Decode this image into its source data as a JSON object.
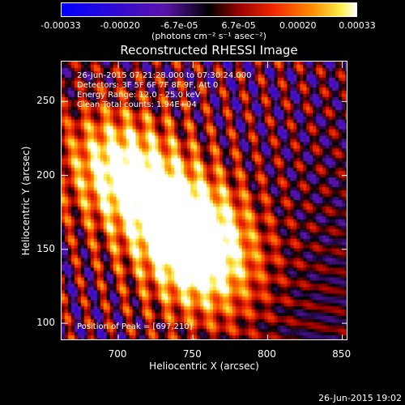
{
  "colorbar": {
    "ticks": [
      "-0.00033",
      "-0.00020",
      "-6.7e-05",
      "6.7e-05",
      "0.00020",
      "0.00033"
    ],
    "unit": "(photons cm⁻² s⁻¹ asec⁻²)"
  },
  "chart_data": {
    "type": "heatmap",
    "title": "Reconstructed RHESSI Image",
    "xlabel": "Heliocentric X (arcsec)",
    "ylabel": "Heliocentric Y (arcsec)",
    "xlim": [
      662,
      854
    ],
    "ylim": [
      88,
      277
    ],
    "xticks": [
      "700",
      "750",
      "800",
      "850"
    ],
    "yticks": [
      "100",
      "150",
      "200",
      "250"
    ],
    "xtick_values": [
      700,
      750,
      800,
      850
    ],
    "ytick_values": [
      100,
      150,
      200,
      250
    ],
    "color_range": [
      -0.00033,
      0.00033
    ],
    "peak": [
      697,
      210
    ],
    "sources": [
      {
        "x": 697,
        "y": 210,
        "intensity": 1.0
      },
      {
        "x": 752,
        "y": 158,
        "intensity": 0.95
      },
      {
        "x": 728,
        "y": 180,
        "intensity": 0.7
      },
      {
        "x": 760,
        "y": 130,
        "intensity": 0.6
      }
    ]
  },
  "annotations": {
    "line1": "26-Jun-2015 07:21:28.000 to 07:30:24.000",
    "line2": "Detectors: 3F 5F 6F 7F 8F 9F, Att 0",
    "line3": "Energy Range: 12.0 - 25.0 keV",
    "line4": "Clean     Total counts: 1.94E+04",
    "peak_text": "Position of Peak = [697,210]"
  },
  "footer": {
    "timestamp": "26-Jun-2015 19:02"
  }
}
